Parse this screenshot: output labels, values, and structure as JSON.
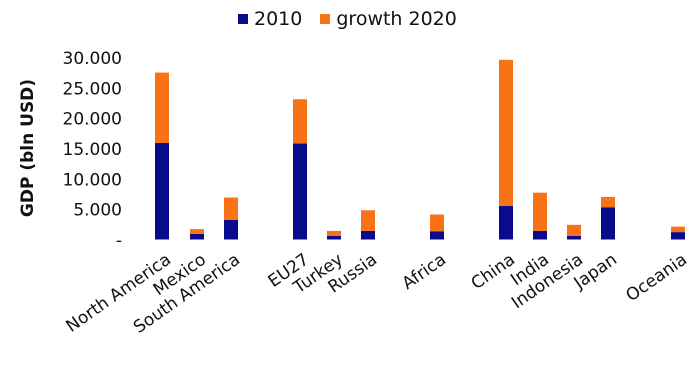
{
  "chart_data": {
    "type": "bar",
    "stacked": true,
    "ylabel": "GDP (bln USD)",
    "ylim": [
      0,
      30000
    ],
    "yticks": [
      0,
      5000,
      10000,
      15000,
      20000,
      25000,
      30000
    ],
    "ytick_labels": [
      "-",
      "5.000",
      "10.000",
      "15.000",
      "20.000",
      "25.000",
      "30.000"
    ],
    "categories": [
      "North America",
      "Mexico",
      "South America",
      "",
      "EU27",
      "Turkey",
      "Russia",
      "",
      "Africa",
      "",
      "China",
      "India",
      "Indonesia",
      "Japan",
      "",
      "Oceania"
    ],
    "series": [
      {
        "name": "2010",
        "color": "#0a0a8c",
        "values": [
          16000,
          1000,
          3300,
          0,
          15900,
          700,
          1500,
          0,
          1400,
          0,
          5600,
          1500,
          700,
          5400,
          0,
          1300
        ]
      },
      {
        "name": "growth 2020",
        "color": "#f97316",
        "values": [
          11600,
          800,
          3700,
          0,
          7300,
          800,
          3400,
          0,
          2800,
          0,
          24100,
          6300,
          1800,
          1700,
          0,
          900
        ]
      }
    ],
    "legend_position": "top",
    "grid": false
  }
}
